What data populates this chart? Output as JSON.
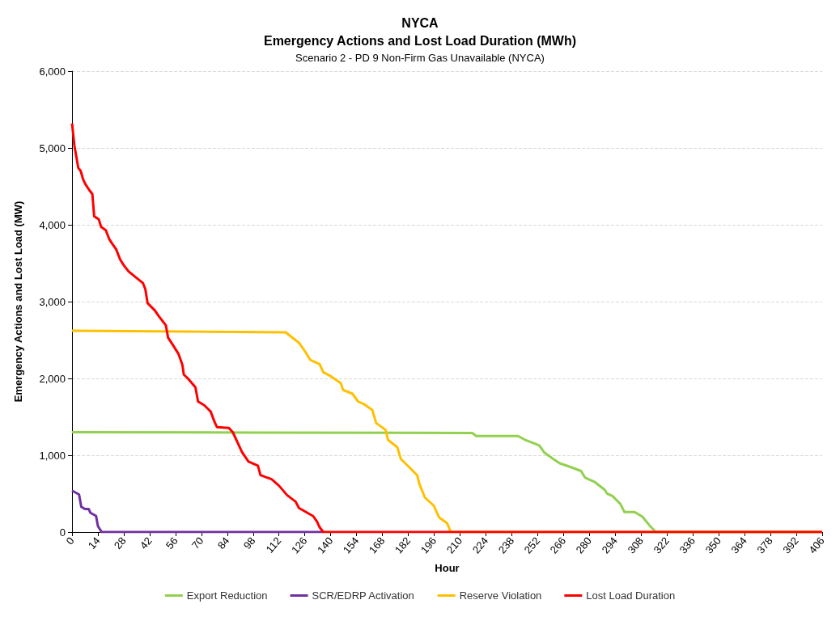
{
  "chart_data": {
    "type": "line",
    "title": "NYCA\nEmergency Actions and Lost Load Duration (MWh)",
    "subtitle": "Scenario 2 - PD 9 Non-Firm Gas Unavailable (NYCA)",
    "xlabel": "Hour",
    "ylabel": "Emergency Actions and Lost Load (MW)",
    "xlim": [
      0,
      406
    ],
    "xticks": [
      0,
      14,
      28,
      42,
      56,
      70,
      84,
      98,
      112,
      126,
      140,
      154,
      168,
      182,
      196,
      210,
      224,
      238,
      252,
      266,
      280,
      294,
      308,
      322,
      336,
      350,
      364,
      378,
      392,
      406
    ],
    "ylim": [
      0,
      6000
    ],
    "yticks": [
      {
        "value": 0,
        "label": "0"
      },
      {
        "value": 1000,
        "label": "1,000"
      },
      {
        "value": 2000,
        "label": "2,000"
      },
      {
        "value": 3000,
        "label": "3,000"
      },
      {
        "value": 4000,
        "label": "4,000"
      },
      {
        "value": 5000,
        "label": "5,000"
      },
      {
        "value": 6000,
        "label": "6,000"
      }
    ],
    "grid": "y",
    "legend": "bottom",
    "marker": "none",
    "line_style": "solid",
    "series": [
      {
        "name": "Export Reduction",
        "color": "#92d050",
        "x": [
          0,
          100,
          216.6,
          218.8,
          241.4,
          245.6,
          251,
          253,
          255.4,
          260.5,
          264,
          270,
          275.5,
          277.6,
          282.7,
          288.3,
          289.6,
          292.5,
          296.8,
          299,
          304.5,
          308.7,
          312.6,
          316,
          406
        ],
        "values": [
          1300,
          1295,
          1290,
          1250,
          1250,
          1195,
          1145,
          1125,
          1040,
          950,
          895,
          845,
          795,
          710,
          655,
          550,
          500,
          470,
          365,
          260,
          260,
          200,
          85,
          0,
          0
        ]
      },
      {
        "name": "SCR/EDRP Activation",
        "color": "#7030a0",
        "x": [
          0,
          3.8,
          5,
          7,
          9,
          10,
          13,
          14,
          16,
          136
        ],
        "values": [
          540,
          490,
          330,
          300,
          300,
          250,
          210,
          80,
          0,
          0
        ]
      },
      {
        "name": "Reserve Violation",
        "color": "#ffc000",
        "x": [
          0,
          60,
          115.6,
          123,
          126,
          129,
          134,
          136,
          140,
          145.4,
          146.7,
          151.8,
          154.8,
          158,
          162.5,
          164.6,
          169.7,
          171,
          176,
          178,
          182.5,
          186.8,
          188,
          191,
          195.7,
          198.7,
          203,
          205,
          406
        ],
        "values": [
          2620,
          2610,
          2600,
          2460,
          2355,
          2240,
          2185,
          2080,
          2030,
          1940,
          1850,
          1800,
          1700,
          1665,
          1590,
          1420,
          1330,
          1200,
          1105,
          950,
          845,
          740,
          625,
          450,
          345,
          190,
          115,
          0,
          0
        ]
      },
      {
        "name": "Lost Load Duration",
        "color": "#ff0000",
        "x": [
          0,
          1.3,
          3.4,
          4.7,
          6,
          7.2,
          9.4,
          11,
          12,
          14.5,
          15.8,
          18.3,
          20,
          21.3,
          23.9,
          26,
          28.1,
          30.7,
          38.4,
          39.7,
          40.9,
          44.8,
          47,
          50.8,
          52,
          55,
          57.6,
          59.7,
          60.5,
          62.7,
          66.8,
          68.2,
          71.6,
          75,
          77.2,
          78.5,
          84.9,
          87,
          92,
          95.5,
          100.6,
          102,
          108,
          112,
          116.4,
          121,
          122.8,
          130.5,
          132.6,
          134,
          136,
          406
        ],
        "values": [
          5320,
          5030,
          4740,
          4700,
          4590,
          4530,
          4450,
          4400,
          4110,
          4070,
          3970,
          3930,
          3820,
          3770,
          3680,
          3550,
          3470,
          3390,
          3240,
          3160,
          2980,
          2885,
          2810,
          2690,
          2530,
          2420,
          2320,
          2180,
          2050,
          2000,
          1885,
          1700,
          1650,
          1570,
          1430,
          1365,
          1354,
          1300,
          1040,
          917,
          865,
          740,
          688,
          604,
          480,
          396,
          313,
          208,
          135,
          63,
          0,
          0
        ]
      }
    ]
  }
}
